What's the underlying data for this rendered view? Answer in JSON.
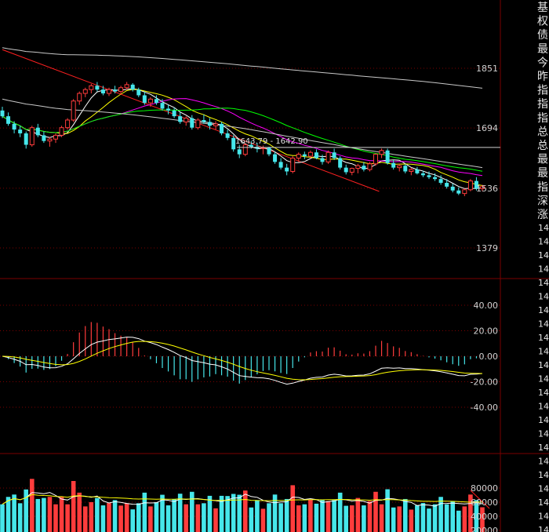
{
  "colors": {
    "background": "#000000",
    "grid": "#7a0000",
    "up": "#ff3c3c",
    "down": "#46e6ea",
    "ma5": "#ffffff",
    "ma10": "#ffff00",
    "ma20": "#ff00ff",
    "ma30": "#00ff00",
    "ma60": "#c8c8c8",
    "ma120": "#c8c8c8",
    "trendline": "#ff2020",
    "label": "#d0d0d0"
  },
  "sidebar": {
    "chars": [
      "基",
      "权",
      "债",
      "最",
      "今",
      "昨",
      "指",
      "指",
      "指",
      "总",
      "总",
      "最",
      "最",
      "指",
      "深",
      "涨"
    ],
    "repeat_text": "14"
  },
  "chart_data": [
    {
      "type": "candlestick",
      "panel": "price",
      "yticks": [
        "1851",
        "1694",
        "1536",
        "1379"
      ],
      "ylim": [
        1379,
        1851
      ],
      "annotation": "1643.79 - 1642.90",
      "reference_line": 1643,
      "trendline": [
        [
          0,
          1900
        ],
        [
          62,
          1540
        ]
      ],
      "ohlc": [
        [
          1740,
          1750,
          1720,
          1725
        ],
        [
          1725,
          1735,
          1700,
          1705
        ],
        [
          1705,
          1712,
          1680,
          1690
        ],
        [
          1690,
          1700,
          1670,
          1680
        ],
        [
          1680,
          1685,
          1640,
          1650
        ],
        [
          1650,
          1700,
          1645,
          1695
        ],
        [
          1695,
          1705,
          1670,
          1675
        ],
        [
          1675,
          1685,
          1655,
          1660
        ],
        [
          1660,
          1670,
          1645,
          1665
        ],
        [
          1665,
          1680,
          1655,
          1675
        ],
        [
          1675,
          1700,
          1670,
          1695
        ],
        [
          1695,
          1720,
          1690,
          1715
        ],
        [
          1715,
          1770,
          1710,
          1765
        ],
        [
          1765,
          1790,
          1755,
          1785
        ],
        [
          1785,
          1800,
          1775,
          1795
        ],
        [
          1795,
          1810,
          1785,
          1805
        ],
        [
          1805,
          1815,
          1790,
          1795
        ],
        [
          1795,
          1805,
          1780,
          1785
        ],
        [
          1785,
          1800,
          1778,
          1795
        ],
        [
          1795,
          1805,
          1785,
          1790
        ],
        [
          1790,
          1805,
          1782,
          1800
        ],
        [
          1800,
          1815,
          1795,
          1808
        ],
        [
          1808,
          1812,
          1790,
          1795
        ],
        [
          1795,
          1800,
          1775,
          1780
        ],
        [
          1780,
          1790,
          1755,
          1760
        ],
        [
          1760,
          1775,
          1750,
          1770
        ],
        [
          1770,
          1780,
          1755,
          1760
        ],
        [
          1760,
          1770,
          1740,
          1745
        ],
        [
          1745,
          1755,
          1730,
          1740
        ],
        [
          1740,
          1748,
          1720,
          1725
        ],
        [
          1725,
          1735,
          1705,
          1710
        ],
        [
          1710,
          1725,
          1700,
          1720
        ],
        [
          1720,
          1728,
          1690,
          1695
        ],
        [
          1695,
          1720,
          1690,
          1715
        ],
        [
          1715,
          1730,
          1705,
          1710
        ],
        [
          1710,
          1720,
          1690,
          1700
        ],
        [
          1700,
          1712,
          1690,
          1705
        ],
        [
          1705,
          1710,
          1675,
          1680
        ],
        [
          1680,
          1690,
          1662,
          1668
        ],
        [
          1668,
          1675,
          1632,
          1638
        ],
        [
          1638,
          1650,
          1615,
          1625
        ],
        [
          1625,
          1655,
          1620,
          1650
        ],
        [
          1650,
          1660,
          1640,
          1645
        ],
        [
          1645,
          1655,
          1630,
          1640
        ],
        [
          1640,
          1648,
          1625,
          1642
        ],
        [
          1642,
          1645,
          1620,
          1625
        ],
        [
          1625,
          1632,
          1600,
          1605
        ],
        [
          1605,
          1615,
          1585,
          1590
        ],
        [
          1590,
          1600,
          1570,
          1580
        ],
        [
          1580,
          1620,
          1575,
          1615
        ],
        [
          1615,
          1630,
          1605,
          1625
        ],
        [
          1625,
          1632,
          1612,
          1620
        ],
        [
          1620,
          1635,
          1614,
          1630
        ],
        [
          1630,
          1638,
          1612,
          1615
        ],
        [
          1615,
          1624,
          1598,
          1605
        ],
        [
          1605,
          1635,
          1600,
          1630
        ],
        [
          1630,
          1640,
          1610,
          1615
        ],
        [
          1615,
          1620,
          1585,
          1590
        ],
        [
          1590,
          1598,
          1572,
          1578
        ],
        [
          1578,
          1590,
          1570,
          1588
        ],
        [
          1588,
          1600,
          1575,
          1595
        ],
        [
          1595,
          1605,
          1580,
          1585
        ],
        [
          1585,
          1605,
          1580,
          1600
        ],
        [
          1600,
          1628,
          1595,
          1625
        ],
        [
          1625,
          1640,
          1615,
          1635
        ],
        [
          1635,
          1640,
          1598,
          1602
        ],
        [
          1602,
          1610,
          1585,
          1590
        ],
        [
          1590,
          1600,
          1580,
          1595
        ],
        [
          1595,
          1600,
          1575,
          1580
        ],
        [
          1580,
          1590,
          1570,
          1585
        ],
        [
          1585,
          1592,
          1572,
          1575
        ],
        [
          1575,
          1582,
          1565,
          1570
        ],
        [
          1570,
          1580,
          1560,
          1565
        ],
        [
          1565,
          1575,
          1555,
          1560
        ],
        [
          1560,
          1570,
          1545,
          1550
        ],
        [
          1550,
          1560,
          1535,
          1540
        ],
        [
          1540,
          1548,
          1525,
          1530
        ],
        [
          1530,
          1538,
          1518,
          1522
        ],
        [
          1522,
          1535,
          1515,
          1532
        ],
        [
          1532,
          1560,
          1528,
          1555
        ],
        [
          1555,
          1565,
          1530,
          1535
        ],
        [
          1535,
          1545,
          1528,
          1540
        ]
      ]
    },
    {
      "type": "macd",
      "panel": "indicator",
      "yticks": [
        "40.00",
        "20.00",
        "0.00",
        "-20.00",
        "-40.00"
      ],
      "ylim": [
        -40,
        40
      ]
    },
    {
      "type": "bar",
      "panel": "volume",
      "yticks": [
        "80000",
        "60000",
        "40000",
        "20000"
      ],
      "ylim": [
        20000,
        80000
      ]
    }
  ]
}
